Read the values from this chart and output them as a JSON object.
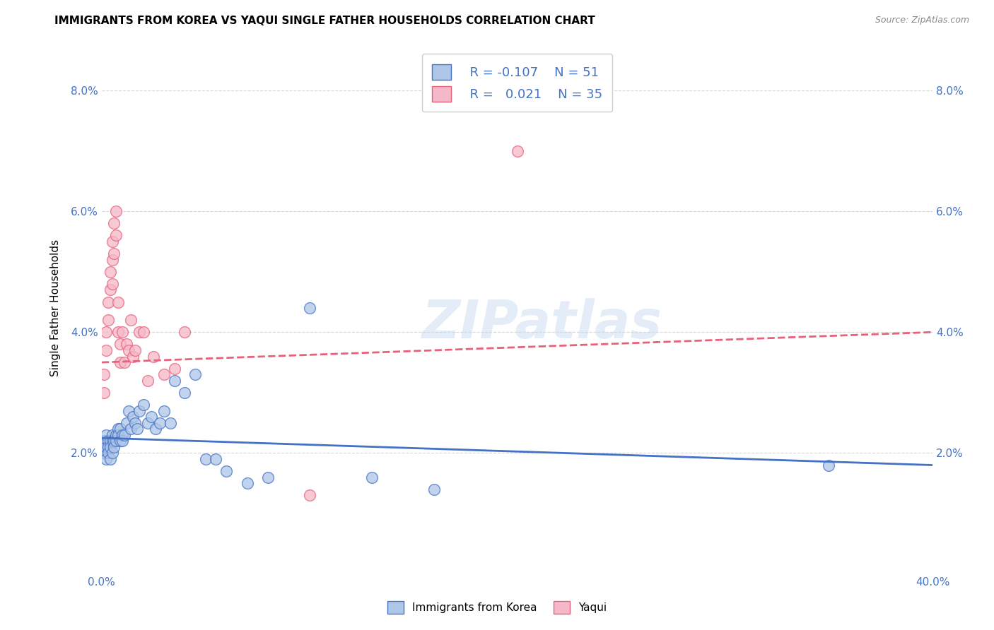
{
  "title": "IMMIGRANTS FROM KOREA VS YAQUI SINGLE FATHER HOUSEHOLDS CORRELATION CHART",
  "source": "Source: ZipAtlas.com",
  "ylabel": "Single Father Households",
  "xlim": [
    0.0,
    0.4
  ],
  "ylim": [
    0.0,
    0.088
  ],
  "xtick_positions": [
    0.0,
    0.05,
    0.1,
    0.15,
    0.2,
    0.25,
    0.3,
    0.35,
    0.4
  ],
  "xtick_labels": [
    "0.0%",
    "",
    "",
    "",
    "",
    "",
    "",
    "",
    "40.0%"
  ],
  "ytick_positions": [
    0.0,
    0.02,
    0.04,
    0.06,
    0.08
  ],
  "ytick_labels": [
    "",
    "2.0%",
    "4.0%",
    "6.0%",
    "8.0%"
  ],
  "legend_korea_R": "-0.107",
  "legend_korea_N": "51",
  "legend_yaqui_R": "0.021",
  "legend_yaqui_N": "35",
  "korea_color": "#aec6e8",
  "yaqui_color": "#f5b8c8",
  "korea_line_color": "#4472c4",
  "yaqui_line_color": "#e8607a",
  "background_color": "#ffffff",
  "watermark": "ZIPatlas",
  "korea_x": [
    0.001,
    0.001,
    0.002,
    0.002,
    0.002,
    0.003,
    0.003,
    0.003,
    0.004,
    0.004,
    0.004,
    0.005,
    0.005,
    0.005,
    0.006,
    0.006,
    0.007,
    0.007,
    0.008,
    0.008,
    0.009,
    0.009,
    0.01,
    0.01,
    0.011,
    0.012,
    0.013,
    0.014,
    0.015,
    0.016,
    0.017,
    0.018,
    0.02,
    0.022,
    0.024,
    0.026,
    0.028,
    0.03,
    0.033,
    0.035,
    0.04,
    0.045,
    0.05,
    0.055,
    0.06,
    0.07,
    0.08,
    0.1,
    0.13,
    0.16,
    0.35
  ],
  "korea_y": [
    0.022,
    0.02,
    0.023,
    0.021,
    0.019,
    0.022,
    0.021,
    0.02,
    0.022,
    0.021,
    0.019,
    0.023,
    0.022,
    0.02,
    0.022,
    0.021,
    0.023,
    0.022,
    0.024,
    0.023,
    0.024,
    0.022,
    0.023,
    0.022,
    0.023,
    0.025,
    0.027,
    0.024,
    0.026,
    0.025,
    0.024,
    0.027,
    0.028,
    0.025,
    0.026,
    0.024,
    0.025,
    0.027,
    0.025,
    0.032,
    0.03,
    0.033,
    0.019,
    0.019,
    0.017,
    0.015,
    0.016,
    0.044,
    0.016,
    0.014,
    0.018
  ],
  "yaqui_x": [
    0.001,
    0.001,
    0.002,
    0.002,
    0.003,
    0.003,
    0.004,
    0.004,
    0.005,
    0.005,
    0.005,
    0.006,
    0.006,
    0.007,
    0.007,
    0.008,
    0.008,
    0.009,
    0.009,
    0.01,
    0.011,
    0.012,
    0.013,
    0.014,
    0.015,
    0.016,
    0.018,
    0.02,
    0.022,
    0.025,
    0.03,
    0.035,
    0.04,
    0.1,
    0.2
  ],
  "yaqui_y": [
    0.033,
    0.03,
    0.04,
    0.037,
    0.045,
    0.042,
    0.05,
    0.047,
    0.055,
    0.052,
    0.048,
    0.058,
    0.053,
    0.06,
    0.056,
    0.045,
    0.04,
    0.038,
    0.035,
    0.04,
    0.035,
    0.038,
    0.037,
    0.042,
    0.036,
    0.037,
    0.04,
    0.04,
    0.032,
    0.036,
    0.033,
    0.034,
    0.04,
    0.013,
    0.07
  ]
}
